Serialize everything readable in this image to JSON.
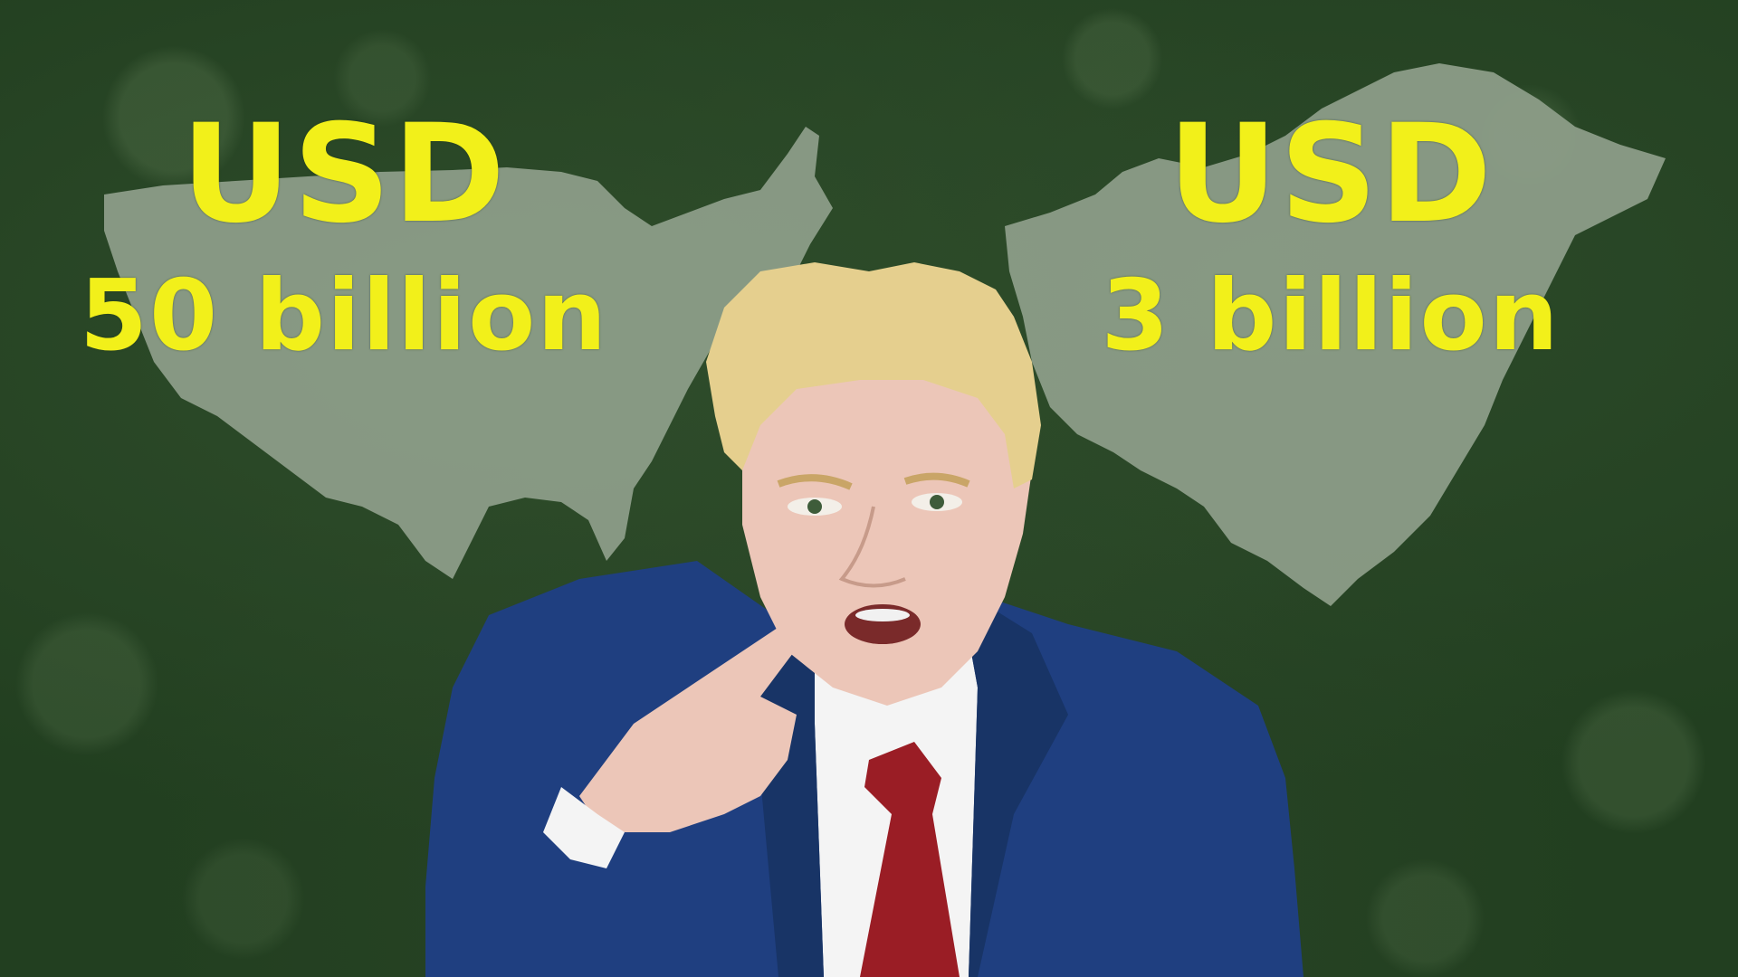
{
  "colors": {
    "background": "#223f20",
    "map_fill": "#8fa08b",
    "text_accent": "#f2f01a",
    "suit": "#1f3f80",
    "tie": "#9a1d25",
    "hair": "#e5cf8e",
    "skin": "#ecc6b8"
  },
  "labels": {
    "left": {
      "currency": "USD",
      "amount": "50 billion"
    },
    "right": {
      "currency": "USD",
      "amount": "3 billion"
    }
  },
  "maps": {
    "left_shape": "usa-map-silhouette",
    "right_shape": "china-map-silhouette"
  },
  "figure": {
    "description_icon": "pointing-man-illustration"
  }
}
